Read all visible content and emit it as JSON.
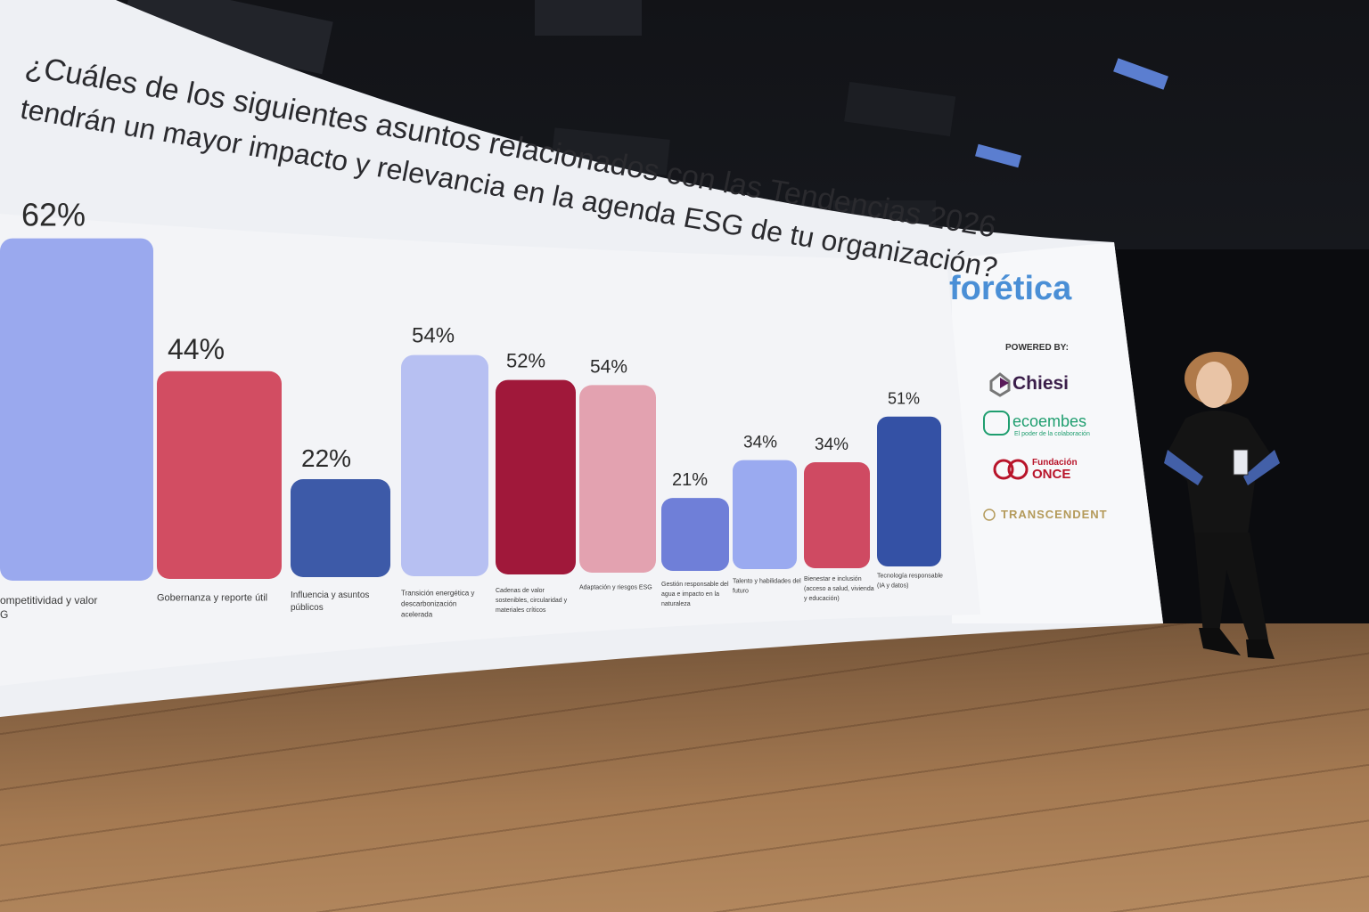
{
  "slide": {
    "title_line1": "¿Cuáles de los siguientes asuntos relacionados con las Tendencias 2026",
    "title_line2": "tendrán un mayor impacto y relevancia en la agenda ESG de tu organización?"
  },
  "chart_data": {
    "type": "bar",
    "categories": [
      "ompetitividad y valor",
      "Gobernanza y reporte útil",
      "Influencia y asuntos públicos",
      "Transición energética y descarbonización acelerada",
      "Cadenas de valor sostenibles, circularidad y materiales críticos",
      "Adaptación y riesgos ESG",
      "Gestión responsable del agua e impacto en la naturaleza",
      "Talento y habilidades del futuro",
      "Bienestar e inclusión (acceso a salud, vivienda y educación)",
      "Tecnología responsable (IA y datos)"
    ],
    "values": [
      62,
      44,
      22,
      54,
      52,
      54,
      21,
      34,
      34,
      51
    ],
    "labels": [
      "62%",
      "44%",
      "22%",
      "54%",
      "52%",
      "54%",
      "21%",
      "34%",
      "34%",
      "51%"
    ],
    "colors": [
      "#9aa9ee",
      "#d24d62",
      "#3d5aa8",
      "#b7c0f2",
      "#a0183a",
      "#e3a2b0",
      "#6f7fd8",
      "#9aaaf0",
      "#cf4a62",
      "#3451a5"
    ]
  },
  "category_lines": [
    [
      "ompetitividad y valor",
      "G"
    ],
    [
      "Gobernanza y reporte útil"
    ],
    [
      "Influencia y asuntos",
      "públicos"
    ],
    [
      "Transición energética y",
      "descarbonización",
      "acelerada"
    ],
    [
      "Cadenas de valor",
      "sostenibles, circularidad y",
      "materiales críticos"
    ],
    [
      "Adaptación y riesgos ESG"
    ],
    [
      "Gestión responsable del",
      "agua e impacto en la",
      "naturaleza"
    ],
    [
      "Talento y habilidades del",
      "futuro"
    ],
    [
      "Bienestar e inclusión",
      "(acceso a salud, vivienda",
      "y educación)"
    ],
    [
      "Tecnología responsable",
      "(IA y datos)"
    ]
  ],
  "sidebar": {
    "brand": "forética",
    "powered_by": "POWERED BY:",
    "sponsor1": "Chiesi",
    "sponsor2": "ecoembes",
    "sponsor2_tagline": "El poder de la colaboración",
    "sponsor3_line1": "Fundación",
    "sponsor3_line2": "ONCE",
    "sponsor4": "TRANSCENDENT"
  },
  "colors": {
    "brand_blue": "#4a8fd6",
    "ecoembes_green": "#1f9e6f",
    "once_red": "#b8142a",
    "transcendent_gold": "#b49a5a"
  }
}
